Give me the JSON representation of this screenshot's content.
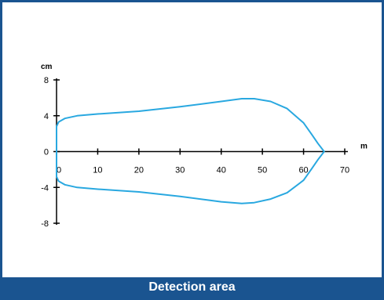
{
  "caption": "Detection area",
  "colors": {
    "frame": "#1a5490",
    "caption_bg": "#1a5490",
    "caption_text": "#ffffff",
    "curve": "#29a8e0",
    "axes": "#000000"
  },
  "chart_data": {
    "type": "line",
    "title": "",
    "xlabel": "m",
    "ylabel": "cm",
    "xlim": [
      0,
      70
    ],
    "ylim": [
      -8,
      8
    ],
    "x_ticks": [
      0,
      10,
      20,
      30,
      40,
      50,
      60,
      70
    ],
    "y_ticks": [
      8,
      4,
      0,
      -4,
      -8
    ],
    "grid": false,
    "legend": "none",
    "series": [
      {
        "name": "",
        "closed": true,
        "x": [
          0,
          0.5,
          2,
          5,
          10,
          20,
          30,
          40,
          45,
          48,
          52,
          56,
          60,
          62,
          63.5,
          65,
          63.5,
          62,
          60,
          56,
          52,
          48,
          45,
          40,
          30,
          20,
          10,
          5,
          2,
          0.5,
          0
        ],
        "y": [
          2.8,
          3.3,
          3.7,
          4.0,
          4.2,
          4.5,
          5.0,
          5.6,
          5.9,
          5.9,
          5.6,
          4.8,
          3.2,
          1.9,
          0.9,
          0,
          -0.9,
          -1.9,
          -3.2,
          -4.6,
          -5.3,
          -5.7,
          -5.8,
          -5.6,
          -5.0,
          -4.5,
          -4.2,
          -4.0,
          -3.7,
          -3.3,
          -2.8
        ]
      }
    ]
  }
}
